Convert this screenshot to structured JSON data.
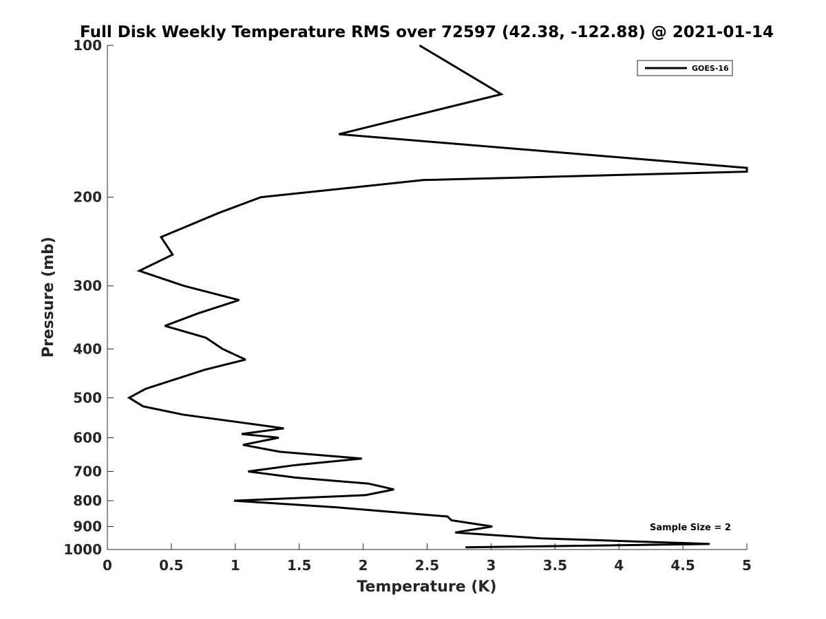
{
  "chart_data": {
    "type": "line",
    "title": "Full Disk Weekly Temperature RMS over 72597 (42.38, -122.88) @ 2021-01-14",
    "xlabel": "Temperature (K)",
    "ylabel": "Pressure (mb)",
    "xlim": [
      0,
      5
    ],
    "ylim": [
      1000,
      100
    ],
    "yscale": "log",
    "y_reversed": true,
    "xticks": [
      0,
      0.5,
      1,
      1.5,
      2,
      2.5,
      3,
      3.5,
      4,
      4.5,
      5
    ],
    "xtick_labels": [
      "0",
      "0.5",
      "1",
      "1.5",
      "2",
      "2.5",
      "3",
      "3.5",
      "4",
      "4.5",
      "5"
    ],
    "yticks": [
      100,
      200,
      300,
      400,
      500,
      600,
      700,
      800,
      900,
      1000
    ],
    "ytick_labels": [
      "100",
      "200",
      "300",
      "400",
      "500",
      "600",
      "700",
      "800",
      "900",
      "1000"
    ],
    "grid": false,
    "legend_position": "top-right",
    "annotation": "Sample Size = 2",
    "series": [
      {
        "name": "GOES-16",
        "color": "#000000",
        "points": [
          [
            2.44,
            100
          ],
          [
            3.08,
            125
          ],
          [
            1.81,
            150
          ],
          [
            5.0,
            175
          ],
          [
            5.0,
            178
          ],
          [
            2.47,
            185
          ],
          [
            1.2,
            200
          ],
          [
            0.87,
            215
          ],
          [
            0.42,
            240
          ],
          [
            0.51,
            260
          ],
          [
            0.25,
            280
          ],
          [
            0.6,
            300
          ],
          [
            1.03,
            320
          ],
          [
            0.71,
            340
          ],
          [
            0.45,
            360
          ],
          [
            0.77,
            380
          ],
          [
            0.9,
            400
          ],
          [
            1.08,
            420
          ],
          [
            0.76,
            440
          ],
          [
            0.3,
            480
          ],
          [
            0.17,
            500
          ],
          [
            0.28,
            520
          ],
          [
            0.59,
            540
          ],
          [
            1.38,
            575
          ],
          [
            1.05,
            590
          ],
          [
            1.34,
            600
          ],
          [
            1.06,
            620
          ],
          [
            1.35,
            640
          ],
          [
            1.99,
            660
          ],
          [
            1.47,
            680
          ],
          [
            1.1,
            700
          ],
          [
            1.47,
            720
          ],
          [
            2.04,
            740
          ],
          [
            2.24,
            760
          ],
          [
            2.02,
            780
          ],
          [
            0.99,
            800
          ],
          [
            1.8,
            825
          ],
          [
            2.66,
            860
          ],
          [
            2.69,
            875
          ],
          [
            3.01,
            900
          ],
          [
            2.72,
            925
          ],
          [
            3.39,
            950
          ],
          [
            4.71,
            975
          ],
          [
            2.8,
            990
          ]
        ]
      }
    ]
  }
}
